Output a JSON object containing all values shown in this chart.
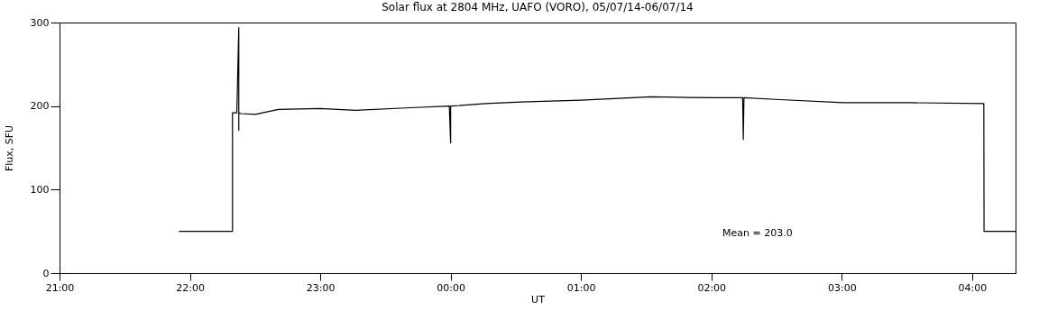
{
  "chart_data": {
    "type": "line",
    "title": "Solar flux at 2804 MHz, UAFO (VORO),  05/07/14-06/07/14",
    "xlabel": "UT",
    "ylabel": "Flux, SFU",
    "annotations": [
      "Mean =  203.0"
    ],
    "xlim": [
      "--07-05T21:00",
      "--07-06T04:20"
    ],
    "ylim": [
      0,
      300
    ],
    "xticks": [
      {
        "value": "--07-05T21:00",
        "label": "21:00"
      },
      {
        "value": "--07-05T22:00",
        "label": "22:00"
      },
      {
        "value": "--07-05T23:00",
        "label": "23:00"
      },
      {
        "value": "--07-06T00:00",
        "label": "00:00"
      },
      {
        "value": "--07-06T01:00",
        "label": "01:00"
      },
      {
        "value": "--07-06T02:00",
        "label": "02:00"
      },
      {
        "value": "--07-06T03:00",
        "label": "03:00"
      },
      {
        "value": "--07-06T04:00",
        "label": "04:00"
      }
    ],
    "yticks": [
      0,
      100,
      200,
      300
    ],
    "grid": false,
    "series": [
      {
        "color": "#000000",
        "x": [
          "--07-05T21:55",
          "--07-05T22:19:36",
          "--07-05T22:19:36",
          "--07-05T22:21:36",
          "--07-05T22:22:30",
          "--07-05T22:22:30",
          "--07-05T22:22:30",
          "--07-05T22:23:24",
          "--07-05T22:30",
          "--07-05T22:40:48",
          "--07-05T23:00",
          "--07-05T23:16:12",
          "--07-05T23:41:24",
          "--07-05T23:59:24",
          "--07-06T00:00",
          "--07-06T00:00",
          "--07-06T00:00:36",
          "--07-06T00:16:12",
          "--07-06T00:32:24",
          "--07-06T01:00",
          "--07-06T01:32:24",
          "--07-06T02:00",
          "--07-06T02:14:24",
          "--07-06T02:14:42",
          "--07-06T02:15",
          "--07-06T02:29:24",
          "--07-06T03:00:36",
          "--07-06T03:32:24",
          "--07-06T04:05:24",
          "--07-06T04:05:30",
          "--07-06T04:20"
        ],
        "values": [
          50,
          50,
          192,
          192,
          294,
          171,
          192,
          191,
          190,
          196,
          197,
          195,
          198,
          200,
          156,
          200,
          200,
          203,
          205,
          207,
          211,
          210,
          210,
          160,
          210,
          208,
          204,
          204,
          203,
          50,
          50
        ]
      }
    ]
  }
}
